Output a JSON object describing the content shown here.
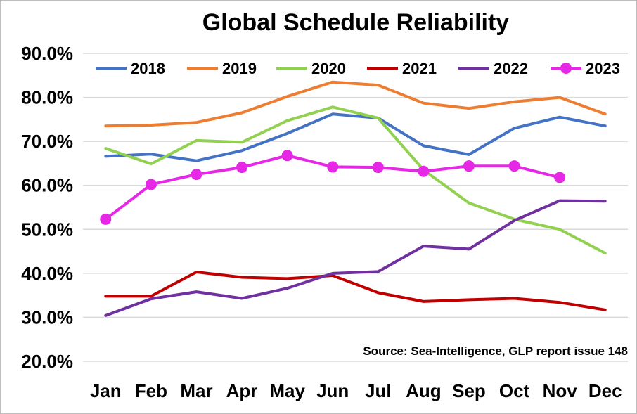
{
  "chart_data": {
    "type": "line",
    "title": "Global Schedule Reliability",
    "source": "Source: Sea-Intelligence, GLP report issue 148",
    "categories": [
      "Jan",
      "Feb",
      "Mar",
      "Apr",
      "May",
      "Jun",
      "Jul",
      "Aug",
      "Sep",
      "Oct",
      "Nov",
      "Dec"
    ],
    "ylim": [
      20,
      90
    ],
    "yticks": [
      20,
      30,
      40,
      50,
      60,
      70,
      80,
      90
    ],
    "ytick_labels": [
      "20.0%",
      "30.0%",
      "40.0%",
      "50.0%",
      "60.0%",
      "70.0%",
      "80.0%",
      "90.0%"
    ],
    "grid": true,
    "legend": "top",
    "series": [
      {
        "name": "2018",
        "color": "#4472c4",
        "markers": false,
        "values": [
          66.6,
          67.1,
          65.6,
          67.9,
          71.8,
          76.2,
          75.3,
          69.0,
          67.0,
          73.0,
          75.5,
          73.5
        ]
      },
      {
        "name": "2019",
        "color": "#ed7d31",
        "markers": false,
        "values": [
          73.5,
          73.7,
          74.3,
          76.5,
          80.2,
          83.5,
          82.8,
          78.7,
          77.5,
          79.0,
          80.0,
          76.2
        ]
      },
      {
        "name": "2020",
        "color": "#92d050",
        "markers": false,
        "values": [
          68.4,
          64.9,
          70.2,
          69.8,
          74.7,
          77.8,
          75.3,
          63.5,
          56.0,
          52.3,
          50.0,
          44.6
        ]
      },
      {
        "name": "2021",
        "color": "#c00000",
        "markers": false,
        "values": [
          34.8,
          34.8,
          40.3,
          39.1,
          38.8,
          39.5,
          35.6,
          33.6,
          34.0,
          34.3,
          33.4,
          31.7
        ]
      },
      {
        "name": "2022",
        "color": "#7030a0",
        "markers": false,
        "values": [
          30.4,
          34.2,
          35.8,
          34.3,
          36.6,
          40.0,
          40.4,
          46.2,
          45.5,
          52.0,
          56.5,
          56.4
        ]
      },
      {
        "name": "2023",
        "color": "#e628e6",
        "markers": true,
        "values": [
          52.3,
          60.2,
          62.5,
          64.1,
          66.8,
          64.2,
          64.1,
          63.2,
          64.4,
          64.4,
          61.8,
          null
        ]
      }
    ]
  }
}
